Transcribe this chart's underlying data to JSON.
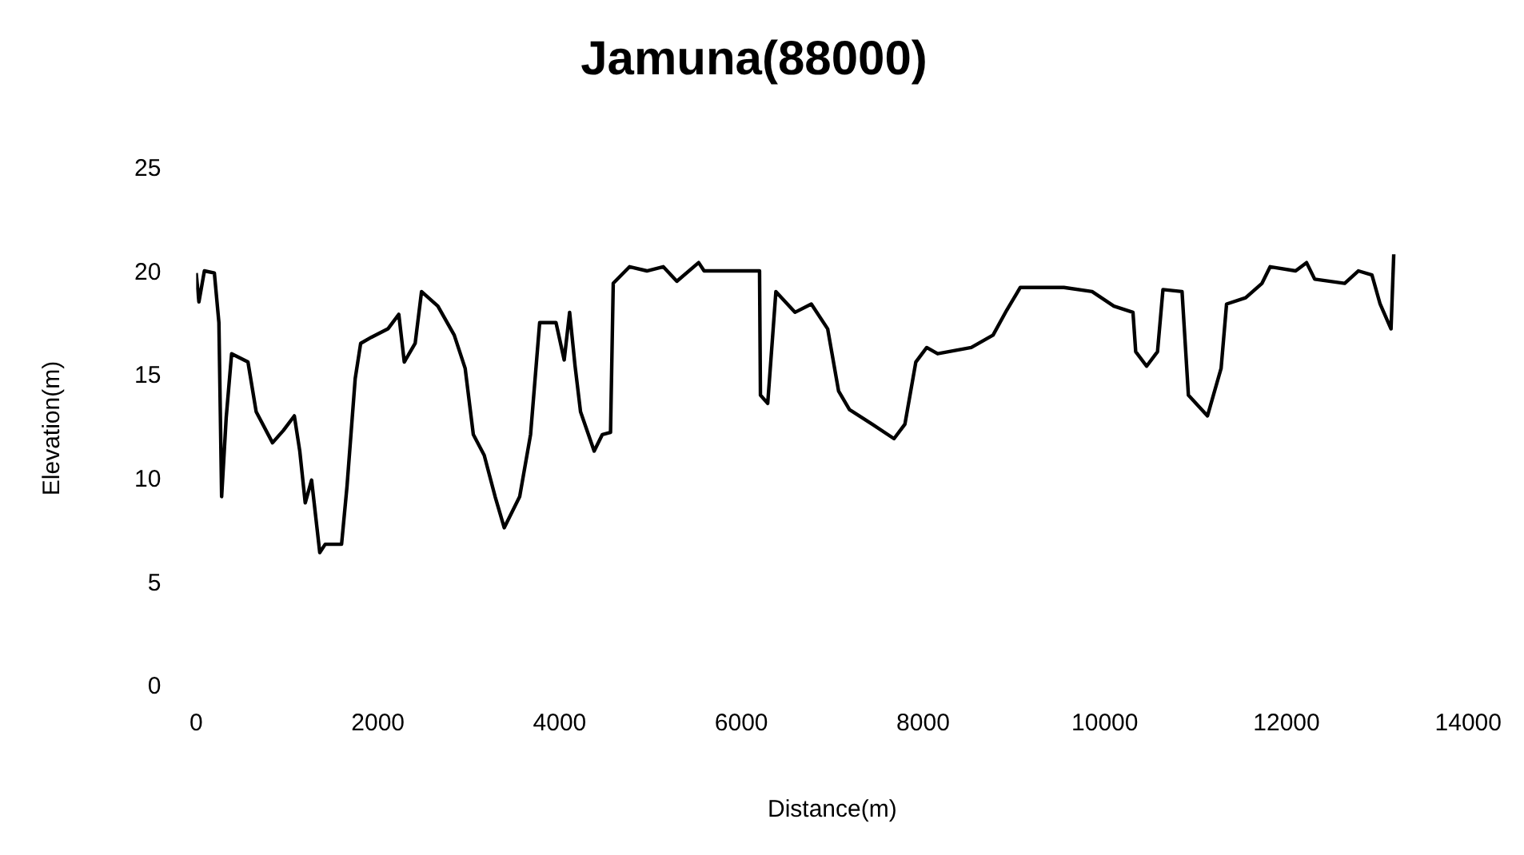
{
  "chart_data": {
    "type": "line",
    "title": "Jamuna(88000)",
    "xlabel": "Distance(m)",
    "ylabel": "Elevation(m)",
    "series": [
      {
        "color": "#000000",
        "x": [
          0,
          30,
          90,
          200,
          250,
          280,
          330,
          390,
          570,
          660,
          840,
          960,
          1080,
          1140,
          1200,
          1270,
          1360,
          1420,
          1600,
          1660,
          1750,
          1810,
          1930,
          2110,
          2230,
          2290,
          2410,
          2480,
          2660,
          2840,
          2960,
          3050,
          3170,
          3290,
          3390,
          3560,
          3680,
          3780,
          3960,
          4050,
          4110,
          4170,
          4230,
          4380,
          4470,
          4560,
          4590,
          4770,
          4960,
          5140,
          5290,
          5530,
          5590,
          6200,
          6210,
          6290,
          6350,
          6380,
          6590,
          6770,
          6950,
          7070,
          7190,
          7440,
          7680,
          7800,
          7920,
          8040,
          8160,
          8530,
          8770,
          8920,
          9070,
          9550,
          9860,
          10100,
          10310,
          10340,
          10460,
          10580,
          10640,
          10850,
          10920,
          11130,
          11280,
          11340,
          11550,
          11730,
          11820,
          12100,
          12220,
          12310,
          12640,
          12790,
          12940,
          13030,
          13150,
          13180
        ],
        "values": [
          20.0,
          18.6,
          20.1,
          20.0,
          17.6,
          9.2,
          13.0,
          16.1,
          15.7,
          13.3,
          11.8,
          12.4,
          13.1,
          11.4,
          8.9,
          10.0,
          6.5,
          6.9,
          6.9,
          9.7,
          14.9,
          16.6,
          16.9,
          17.3,
          18.0,
          15.7,
          16.6,
          19.1,
          18.4,
          17.0,
          15.4,
          12.2,
          11.2,
          9.2,
          7.7,
          9.2,
          12.2,
          17.6,
          17.6,
          15.8,
          18.1,
          15.5,
          13.3,
          11.4,
          12.2,
          12.3,
          19.5,
          20.3,
          20.1,
          20.3,
          19.6,
          20.5,
          20.1,
          20.1,
          14.1,
          13.7,
          17.3,
          19.1,
          18.1,
          18.5,
          17.3,
          14.3,
          13.4,
          12.7,
          12.0,
          12.7,
          15.7,
          16.4,
          16.1,
          16.4,
          17.0,
          18.2,
          19.3,
          19.3,
          19.1,
          18.4,
          18.1,
          16.2,
          15.5,
          16.2,
          19.2,
          19.1,
          14.1,
          13.1,
          15.4,
          18.5,
          18.8,
          19.5,
          20.3,
          20.1,
          20.5,
          19.7,
          19.5,
          20.1,
          19.9,
          18.5,
          17.3,
          20.9
        ]
      }
    ],
    "xlim": [
      0,
      14000
    ],
    "xticks": [
      0,
      2000,
      4000,
      6000,
      8000,
      10000,
      12000,
      14000
    ],
    "ylim": [
      0,
      25
    ],
    "yticks": [
      0,
      5,
      10,
      15,
      20,
      25
    ],
    "grid": false,
    "legend": false,
    "marker": "none",
    "line_style": "solid"
  }
}
